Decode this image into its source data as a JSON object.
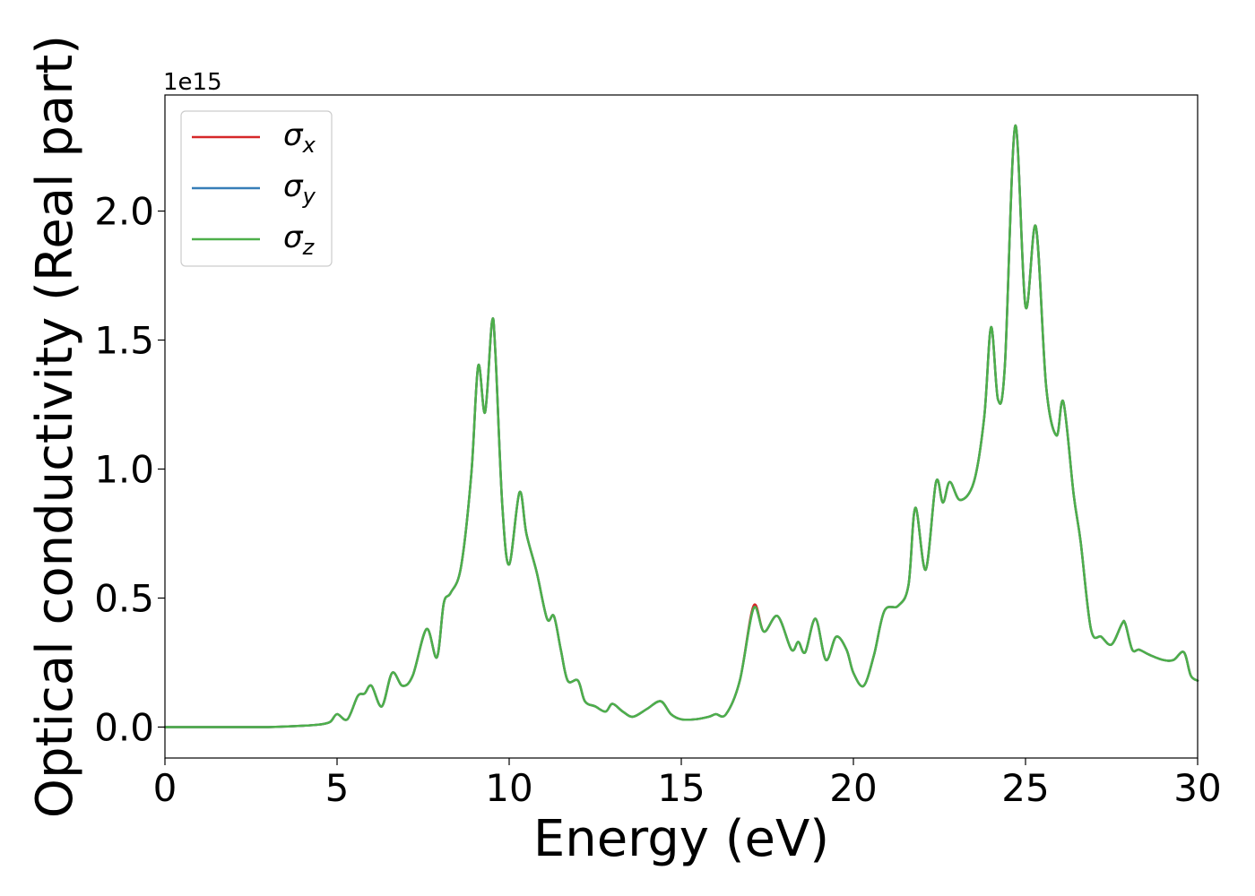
{
  "chart_data": {
    "type": "line",
    "xlabel": "Energy (eV)",
    "ylabel": "Optical conductivity (Real part)",
    "offset_text": "1e15",
    "xlim": [
      0,
      30
    ],
    "ylim": [
      -0.12,
      2.45
    ],
    "xticks": [
      0,
      5,
      10,
      15,
      20,
      25,
      30
    ],
    "xtick_labels": [
      "0",
      "5",
      "10",
      "15",
      "20",
      "25",
      "30"
    ],
    "yticks": [
      0.0,
      0.5,
      1.0,
      1.5,
      2.0
    ],
    "ytick_labels": [
      "0.0",
      "0.5",
      "1.0",
      "1.5",
      "2.0"
    ],
    "grid": false,
    "legend_position": "top-left",
    "x": [
      0,
      1,
      2,
      3,
      4,
      4.5,
      4.8,
      5.0,
      5.3,
      5.6,
      5.8,
      6.0,
      6.3,
      6.6,
      6.9,
      7.2,
      7.6,
      7.9,
      8.1,
      8.3,
      8.6,
      8.9,
      9.1,
      9.3,
      9.5,
      9.6,
      9.8,
      10.0,
      10.3,
      10.5,
      10.8,
      11.1,
      11.3,
      11.5,
      11.7,
      12.0,
      12.2,
      12.5,
      12.8,
      13.0,
      13.3,
      13.6,
      14.0,
      14.4,
      14.7,
      15.0,
      15.4,
      15.8,
      16.0,
      16.3,
      16.7,
      17.1,
      17.4,
      17.8,
      18.2,
      18.4,
      18.6,
      18.9,
      19.2,
      19.5,
      19.8,
      20.0,
      20.3,
      20.6,
      20.9,
      21.3,
      21.6,
      21.8,
      22.1,
      22.4,
      22.6,
      22.8,
      23.1,
      23.5,
      23.8,
      24.0,
      24.2,
      24.4,
      24.7,
      25.0,
      25.3,
      25.6,
      25.9,
      26.1,
      26.4,
      26.6,
      26.9,
      27.2,
      27.5,
      27.8,
      27.9,
      28.1,
      28.3,
      28.6,
      29.0,
      29.3,
      29.6,
      29.8,
      30.0
    ],
    "series": [
      {
        "name": "σ_x",
        "color": "#d62728",
        "values": [
          0,
          0,
          0,
          0,
          0.005,
          0.01,
          0.02,
          0.05,
          0.03,
          0.12,
          0.13,
          0.16,
          0.08,
          0.21,
          0.16,
          0.2,
          0.38,
          0.27,
          0.48,
          0.52,
          0.62,
          0.98,
          1.4,
          1.22,
          1.57,
          1.45,
          0.86,
          0.63,
          0.91,
          0.75,
          0.6,
          0.42,
          0.43,
          0.3,
          0.18,
          0.18,
          0.1,
          0.08,
          0.06,
          0.09,
          0.06,
          0.04,
          0.07,
          0.1,
          0.05,
          0.03,
          0.03,
          0.04,
          0.05,
          0.05,
          0.18,
          0.47,
          0.37,
          0.43,
          0.3,
          0.33,
          0.29,
          0.42,
          0.26,
          0.35,
          0.3,
          0.21,
          0.16,
          0.28,
          0.45,
          0.47,
          0.55,
          0.85,
          0.61,
          0.95,
          0.87,
          0.95,
          0.88,
          0.95,
          1.2,
          1.55,
          1.27,
          1.4,
          2.33,
          1.63,
          1.94,
          1.32,
          1.13,
          1.26,
          0.9,
          0.72,
          0.38,
          0.35,
          0.32,
          0.4,
          0.4,
          0.3,
          0.3,
          0.28,
          0.26,
          0.26,
          0.29,
          0.2,
          0.18
        ]
      },
      {
        "name": "σ_y",
        "color": "#377eb8",
        "values": [
          0,
          0,
          0,
          0,
          0.005,
          0.01,
          0.02,
          0.05,
          0.03,
          0.12,
          0.13,
          0.16,
          0.08,
          0.21,
          0.16,
          0.2,
          0.38,
          0.27,
          0.48,
          0.52,
          0.62,
          0.98,
          1.4,
          1.22,
          1.57,
          1.45,
          0.86,
          0.63,
          0.91,
          0.75,
          0.6,
          0.42,
          0.43,
          0.3,
          0.18,
          0.18,
          0.1,
          0.08,
          0.06,
          0.09,
          0.06,
          0.04,
          0.07,
          0.1,
          0.05,
          0.03,
          0.03,
          0.04,
          0.05,
          0.05,
          0.18,
          0.46,
          0.37,
          0.43,
          0.3,
          0.33,
          0.29,
          0.42,
          0.26,
          0.35,
          0.3,
          0.21,
          0.16,
          0.28,
          0.45,
          0.47,
          0.55,
          0.85,
          0.61,
          0.95,
          0.87,
          0.95,
          0.88,
          0.95,
          1.2,
          1.55,
          1.27,
          1.4,
          2.33,
          1.63,
          1.94,
          1.32,
          1.13,
          1.26,
          0.9,
          0.72,
          0.38,
          0.35,
          0.32,
          0.4,
          0.4,
          0.3,
          0.3,
          0.28,
          0.26,
          0.26,
          0.29,
          0.2,
          0.18
        ]
      },
      {
        "name": "σ_z",
        "color": "#4daf4a",
        "values": [
          0,
          0,
          0,
          0,
          0.005,
          0.01,
          0.02,
          0.05,
          0.03,
          0.12,
          0.13,
          0.16,
          0.08,
          0.21,
          0.16,
          0.2,
          0.38,
          0.27,
          0.48,
          0.52,
          0.62,
          0.98,
          1.4,
          1.22,
          1.57,
          1.45,
          0.86,
          0.63,
          0.91,
          0.75,
          0.6,
          0.42,
          0.43,
          0.3,
          0.18,
          0.18,
          0.1,
          0.08,
          0.06,
          0.09,
          0.06,
          0.04,
          0.07,
          0.1,
          0.05,
          0.03,
          0.03,
          0.04,
          0.05,
          0.05,
          0.18,
          0.46,
          0.37,
          0.43,
          0.3,
          0.33,
          0.29,
          0.42,
          0.26,
          0.35,
          0.3,
          0.21,
          0.16,
          0.28,
          0.45,
          0.47,
          0.55,
          0.85,
          0.61,
          0.95,
          0.87,
          0.95,
          0.88,
          0.95,
          1.2,
          1.55,
          1.27,
          1.4,
          2.33,
          1.63,
          1.94,
          1.32,
          1.13,
          1.26,
          0.9,
          0.72,
          0.38,
          0.35,
          0.32,
          0.4,
          0.4,
          0.3,
          0.3,
          0.28,
          0.26,
          0.26,
          0.29,
          0.2,
          0.18
        ]
      }
    ],
    "legend": [
      {
        "symbol": "σ",
        "sub": "x"
      },
      {
        "symbol": "σ",
        "sub": "y"
      },
      {
        "symbol": "σ",
        "sub": "z"
      }
    ]
  }
}
